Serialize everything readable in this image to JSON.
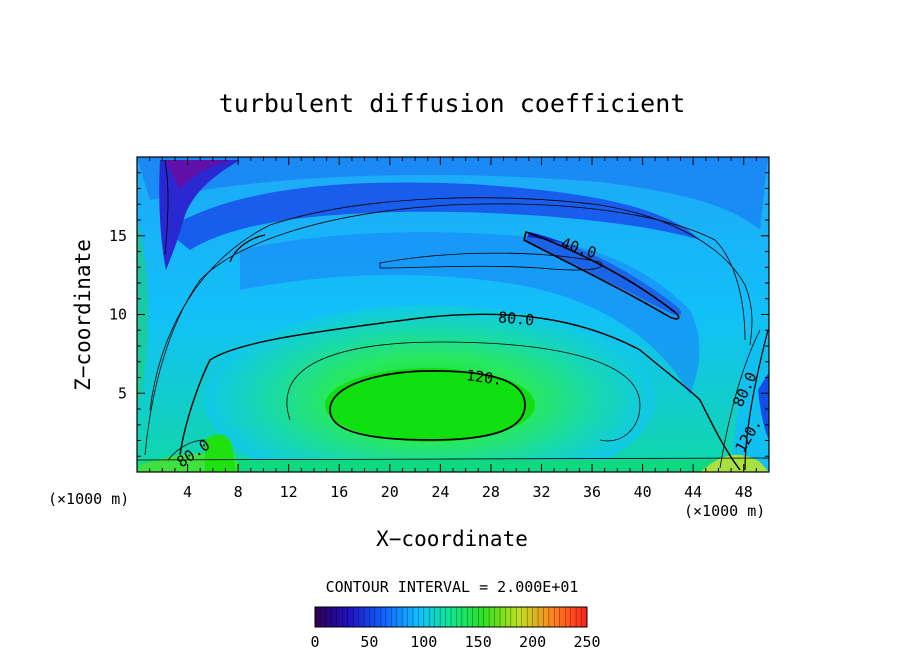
{
  "chart_data": {
    "type": "heatmap",
    "title": "turbulent diffusion coefficient",
    "xlabel": "X−coordinate",
    "ylabel": "Z−coordinate",
    "x_unit_left": "(×1000 m)",
    "x_unit_right": "(×1000 m)",
    "xlim": [
      0,
      50
    ],
    "ylim": [
      0,
      20
    ],
    "x_ticks": [
      "4",
      "8",
      "12",
      "16",
      "20",
      "24",
      "28",
      "32",
      "36",
      "40",
      "44",
      "48"
    ],
    "y_ticks": [
      "5",
      "10",
      "15"
    ],
    "contour_interval_text": "CONTOUR INTERVAL = 2.000E+01",
    "contour_labels": [
      "40.0",
      "80.0",
      "120.",
      "80.0",
      "80.0",
      "120."
    ],
    "colorbar": {
      "min": 0,
      "max": 250,
      "ticks": [
        "0",
        "50",
        "100",
        "150",
        "200",
        "250"
      ]
    },
    "colors": {
      "low": "#3a0aa0",
      "mid_low": "#1a5aff",
      "mid": "#10c8f8",
      "mid_high": "#10e020",
      "high": "#ff2020"
    }
  }
}
